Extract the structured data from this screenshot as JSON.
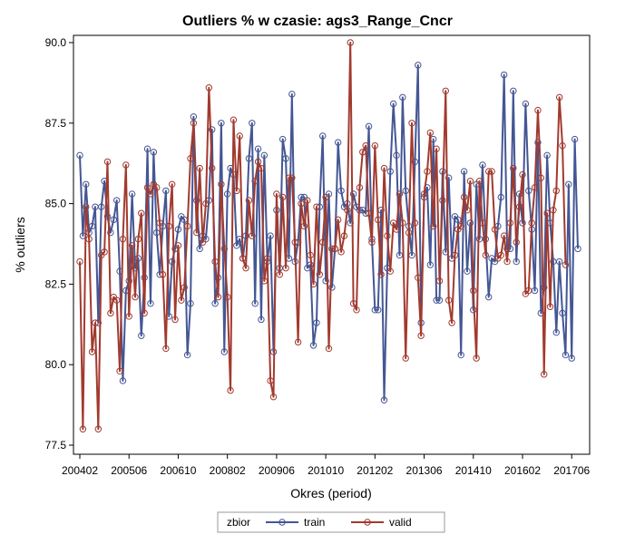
{
  "chart_data": {
    "type": "line",
    "title": "Outliers % w czasie: ags3_Range_Cncr",
    "xlabel": "Okres (period)",
    "ylabel": "% outliers",
    "ylim": [
      77.5,
      90.0
    ],
    "y_ticks": [
      "77.5",
      "80.0",
      "82.5",
      "85.0",
      "87.5",
      "90.0"
    ],
    "x_ticks": [
      "200402",
      "200506",
      "200610",
      "200802",
      "200906",
      "201010",
      "201202",
      "201306",
      "201410",
      "201602",
      "201706"
    ],
    "x_start": "200402",
    "grid": false,
    "legend_position": "bottom",
    "legend_title": "zbior",
    "series": [
      {
        "name": "train",
        "color": "#445694",
        "values": [
          86.5,
          84.0,
          85.6,
          84.1,
          84.3,
          84.9,
          81.3,
          84.9,
          85.7,
          84.6,
          84.1,
          84.5,
          85.1,
          82.9,
          79.5,
          82.3,
          82.6,
          85.3,
          83.0,
          83.3,
          80.9,
          82.7,
          86.7,
          81.9,
          86.6,
          84.1,
          82.8,
          84.3,
          85.4,
          81.5,
          83.2,
          83.6,
          84.2,
          84.6,
          84.5,
          80.3,
          81.9,
          87.7,
          85.1,
          83.6,
          84.0,
          83.9,
          85.1,
          87.3,
          81.9,
          82.7,
          87.5,
          80.4,
          85.3,
          86.1,
          85.9,
          83.7,
          83.9,
          83.3,
          84.0,
          86.4,
          87.5,
          81.9,
          86.7,
          81.4,
          86.5,
          83.2,
          84.0,
          80.4,
          84.8,
          83.0,
          87.0,
          86.4,
          83.3,
          88.4,
          83.2,
          83.8,
          85.2,
          85.2,
          83.0,
          83.1,
          80.6,
          81.3,
          84.9,
          87.1,
          82.6,
          85.3,
          82.4,
          83.6,
          86.9,
          85.4,
          84.9,
          85.0,
          84.4,
          85.3,
          84.9,
          84.8,
          84.8,
          84.7,
          87.4,
          83.9,
          81.7,
          81.7,
          84.8,
          78.9,
          83.0,
          86.0,
          88.1,
          86.5,
          83.4,
          88.3,
          85.4,
          84.3,
          83.4,
          86.3,
          89.3,
          81.3,
          85.2,
          85.5,
          83.1,
          87.0,
          82.0,
          82.0,
          86.0,
          83.5,
          85.8,
          83.3,
          84.6,
          84.5,
          80.3,
          86.0,
          82.9,
          84.4,
          81.7,
          85.6,
          83.9,
          86.2,
          83.9,
          82.1,
          83.3,
          83.2,
          84.3,
          85.2,
          89.0,
          83.6,
          83.6,
          88.5,
          83.2,
          85.3,
          84.4,
          88.1,
          85.4,
          84.2,
          82.3,
          86.9,
          81.6,
          82.4,
          86.5,
          84.4,
          83.2,
          81.0,
          83.2,
          81.6,
          80.3,
          85.6,
          80.2,
          87.0,
          83.6
        ]
      },
      {
        "name": "valid",
        "color": "#A23A2E",
        "values": [
          83.2,
          78.0,
          84.9,
          83.9,
          80.4,
          81.3,
          78.0,
          83.4,
          83.5,
          86.3,
          81.6,
          82.1,
          82.0,
          79.8,
          83.9,
          86.2,
          81.5,
          83.7,
          82.1,
          83.9,
          84.7,
          81.6,
          85.5,
          85.3,
          85.6,
          85.5,
          84.4,
          82.8,
          80.5,
          84.3,
          85.6,
          81.4,
          83.7,
          82.0,
          82.4,
          84.3,
          86.4,
          87.5,
          84.1,
          86.1,
          83.8,
          85.0,
          88.6,
          86.1,
          83.2,
          82.1,
          85.6,
          83.6,
          82.1,
          79.2,
          87.6,
          85.4,
          87.1,
          83.3,
          83.0,
          85.1,
          84.0,
          85.7,
          86.3,
          86.1,
          82.6,
          83.3,
          79.5,
          79.0,
          85.3,
          82.8,
          85.2,
          83.0,
          85.8,
          85.8,
          83.8,
          80.7,
          85.0,
          84.3,
          85.1,
          83.4,
          82.5,
          84.9,
          82.8,
          83.8,
          85.2,
          80.5,
          83.6,
          83.6,
          84.5,
          83.5,
          84.0,
          84.8,
          90.0,
          81.9,
          81.7,
          85.5,
          86.6,
          86.8,
          84.7,
          83.8,
          86.8,
          84.5,
          82.8,
          86.1,
          84.0,
          82.9,
          84.4,
          84.2,
          85.3,
          84.4,
          80.2,
          84.1,
          87.5,
          84.4,
          82.7,
          80.9,
          85.3,
          86.0,
          87.2,
          84.3,
          86.7,
          82.6,
          85.1,
          88.5,
          82.0,
          81.3,
          83.4,
          84.2,
          84.3,
          85.2,
          84.8,
          85.7,
          82.3,
          80.2,
          85.7,
          84.4,
          83.4,
          86.0,
          86.0,
          84.2,
          83.3,
          83.4,
          84.0,
          83.2,
          84.4,
          86.1,
          83.8,
          84.9,
          85.9,
          82.2,
          82.3,
          84.4,
          85.5,
          87.9,
          85.8,
          79.7,
          84.7,
          81.8,
          84.8,
          85.4,
          88.3,
          86.8,
          83.1
        ]
      }
    ]
  }
}
